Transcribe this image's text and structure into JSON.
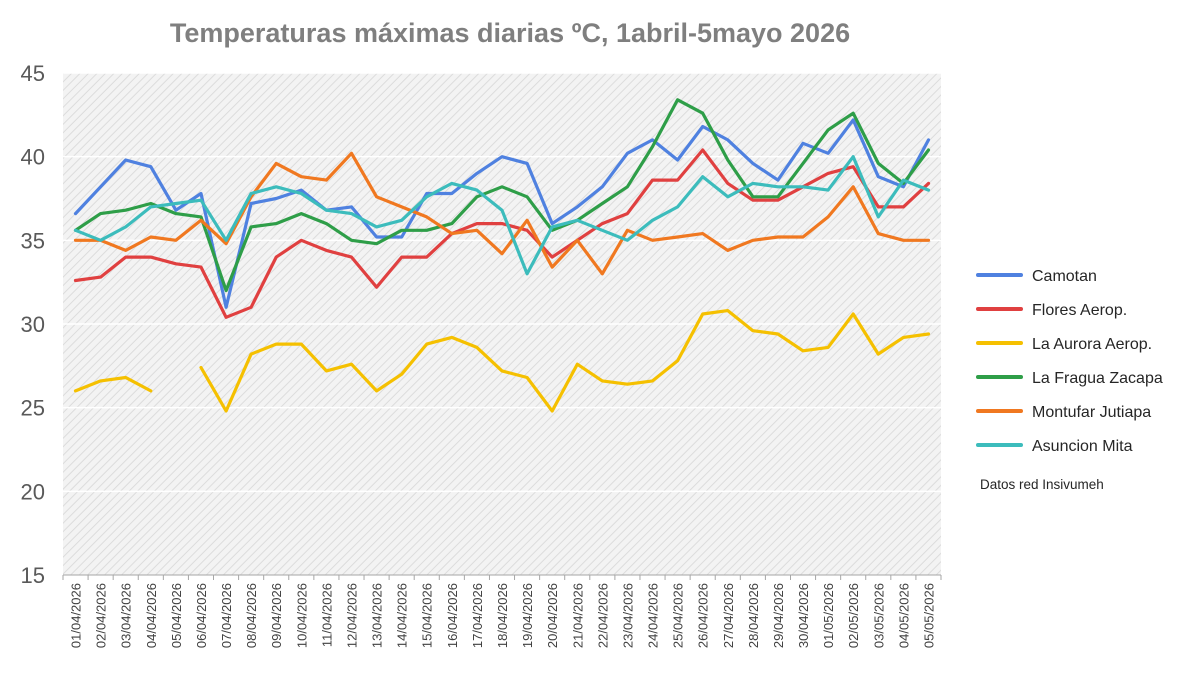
{
  "chart_data": {
    "type": "line",
    "title": "Temperaturas máximas diarias ºC, 1abril-5mayo 2026",
    "xlabel": "",
    "ylabel": "",
    "ylim": [
      15,
      45
    ],
    "yticks": [
      "15",
      "20",
      "25",
      "30",
      "35",
      "40",
      "45"
    ],
    "grid": true,
    "legend_position": "right",
    "note": "Datos red Insivumeh",
    "categories": [
      "01/04/2026",
      "02/04/2026",
      "03/04/2026",
      "04/04/2026",
      "05/04/2026",
      "06/04/2026",
      "07/04/2026",
      "08/04/2026",
      "09/04/2026",
      "10/04/2026",
      "11/04/2026",
      "12/04/2026",
      "13/04/2026",
      "14/04/2026",
      "15/04/2026",
      "16/04/2026",
      "17/04/2026",
      "18/04/2026",
      "19/04/2026",
      "20/04/2026",
      "21/04/2026",
      "22/04/2026",
      "23/04/2026",
      "24/04/2026",
      "25/04/2026",
      "26/04/2026",
      "27/04/2026",
      "28/04/2026",
      "29/04/2026",
      "30/04/2026",
      "01/05/2026",
      "02/05/2026",
      "03/05/2026",
      "04/05/2026",
      "05/05/2026"
    ],
    "series": [
      {
        "name": "Camotan",
        "color": "#4f81e0",
        "values": [
          36.6,
          38.2,
          39.8,
          39.4,
          36.8,
          37.8,
          31.0,
          37.2,
          37.5,
          38.0,
          36.8,
          37.0,
          35.2,
          35.2,
          37.8,
          37.8,
          39.0,
          40.0,
          39.6,
          36.0,
          37.0,
          38.2,
          40.2,
          41.0,
          39.8,
          41.8,
          41.0,
          39.6,
          38.6,
          40.8,
          40.2,
          42.2,
          38.8,
          38.2,
          41.0
        ]
      },
      {
        "name": "Flores Aerop.",
        "color": "#e04040",
        "values": [
          32.6,
          32.8,
          34.0,
          34.0,
          33.6,
          33.4,
          30.4,
          31.0,
          34.0,
          35.0,
          34.4,
          34.0,
          32.2,
          34.0,
          34.0,
          35.4,
          36.0,
          36.0,
          35.6,
          34.0,
          35.0,
          36.0,
          36.6,
          38.6,
          38.6,
          40.4,
          38.4,
          37.4,
          37.4,
          38.2,
          39.0,
          39.4,
          37.0,
          37.0,
          38.4
        ]
      },
      {
        "name": "La Aurora Aerop.",
        "color": "#f5c000",
        "values": [
          26.0,
          26.6,
          26.8,
          26.0,
          null,
          27.4,
          24.8,
          28.2,
          28.8,
          28.8,
          27.2,
          27.6,
          26.0,
          27.0,
          28.8,
          29.2,
          28.6,
          27.2,
          26.8,
          24.8,
          27.6,
          26.6,
          26.4,
          26.6,
          27.8,
          30.6,
          30.8,
          29.6,
          29.4,
          28.4,
          28.6,
          30.6,
          28.2,
          29.2,
          29.4
        ]
      },
      {
        "name": "La Fragua Zacapa",
        "color": "#2e9e48",
        "values": [
          35.6,
          36.6,
          36.8,
          37.2,
          36.6,
          36.4,
          32.0,
          35.8,
          36.0,
          36.6,
          36.0,
          35.0,
          34.8,
          35.6,
          35.6,
          36.0,
          37.6,
          38.2,
          37.6,
          35.6,
          36.2,
          37.2,
          38.2,
          40.6,
          43.4,
          42.6,
          39.8,
          37.6,
          37.6,
          39.6,
          41.6,
          42.6,
          39.6,
          38.4,
          40.4
        ]
      },
      {
        "name": "Montufar Jutiapa",
        "color": "#f07820",
        "values": [
          35.0,
          35.0,
          34.4,
          35.2,
          35.0,
          36.2,
          34.8,
          37.6,
          39.6,
          38.8,
          38.6,
          40.2,
          37.6,
          37.0,
          36.4,
          35.4,
          35.6,
          34.2,
          36.2,
          33.4,
          35.0,
          33.0,
          35.6,
          35.0,
          35.2,
          35.4,
          34.4,
          35.0,
          35.2,
          35.2,
          36.4,
          38.2,
          35.4,
          35.0,
          35.0
        ]
      },
      {
        "name": "Asuncion Mita",
        "color": "#3cbcbc",
        "values": [
          35.6,
          35.0,
          35.8,
          37.0,
          37.2,
          37.4,
          35.0,
          37.8,
          38.2,
          37.8,
          36.8,
          36.6,
          35.8,
          36.2,
          37.6,
          38.4,
          38.0,
          36.8,
          33.0,
          35.8,
          36.2,
          35.6,
          35.0,
          36.2,
          37.0,
          38.8,
          37.6,
          38.4,
          38.2,
          38.2,
          38.0,
          40.0,
          36.4,
          38.6,
          38.0
        ]
      }
    ]
  }
}
